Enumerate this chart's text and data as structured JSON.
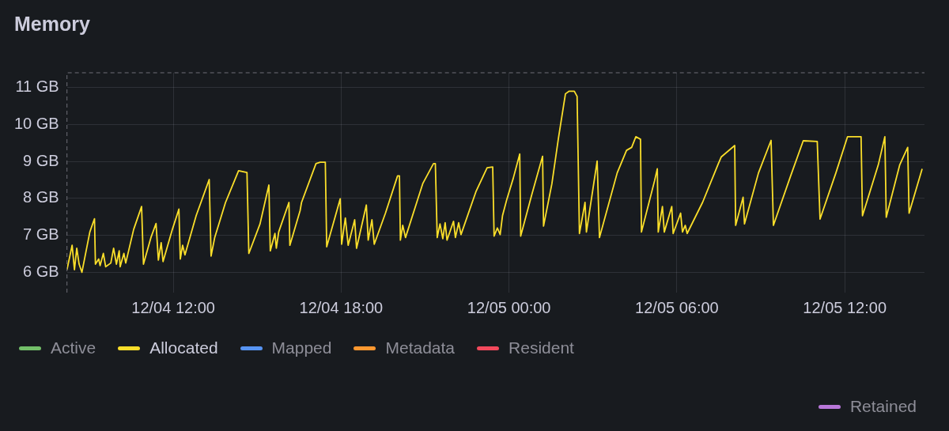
{
  "chart_data": {
    "type": "line",
    "title": "Memory",
    "xlim": [
      "--12-04T08:12",
      "--12-05T14:51"
    ],
    "xticks": [
      {
        "value": "--12-04T12:00",
        "label": "12/04 12:00"
      },
      {
        "value": "--12-04T18:00",
        "label": "12/04 18:00"
      },
      {
        "value": "--12-05T00:00",
        "label": "12/05 00:00"
      },
      {
        "value": "--12-05T06:00",
        "label": "12/05 06:00"
      },
      {
        "value": "--12-05T12:00",
        "label": "12/05 12:00"
      }
    ],
    "ylim": [
      5.45,
      11.4
    ],
    "yticks": [
      {
        "value": 6,
        "label": "6 GB"
      },
      {
        "value": 7,
        "label": "7 GB"
      },
      {
        "value": 8,
        "label": "8 GB"
      },
      {
        "value": 9,
        "label": "9 GB"
      },
      {
        "value": 10,
        "label": "10 GB"
      },
      {
        "value": 11,
        "label": "11 GB"
      }
    ],
    "grid": true,
    "legend": "bottom",
    "marker": "none",
    "line_style": "solid",
    "series": [
      {
        "name": "Active",
        "color": "#73bf69"
      },
      {
        "name": "Allocated",
        "color": "#fade2a",
        "x": [
          "--12-04T08:12",
          "--12-04T08:23",
          "--12-04T08:28",
          "--12-04T08:33",
          "--12-04T08:38",
          "--12-04T08:44",
          "--12-04T09:01",
          "--12-04T09:11",
          "--12-04T09:13",
          "--12-04T09:20",
          "--12-04T09:23",
          "--12-04T09:30",
          "--12-04T09:35",
          "--12-04T09:46",
          "--12-04T09:52",
          "--12-04T09:58",
          "--12-04T10:04",
          "--12-04T10:06",
          "--12-04T10:14",
          "--12-04T10:18",
          "--12-04T10:35",
          "--12-04T10:52",
          "--12-04T10:56",
          "--12-04T11:12",
          "--12-04T11:23",
          "--12-04T11:28",
          "--12-04T11:34",
          "--12-04T11:38",
          "--12-04T11:58",
          "--12-04T12:12",
          "--12-04T12:15",
          "--12-04T12:20",
          "--12-04T12:25",
          "--12-04T12:49",
          "--12-04T13:17",
          "--12-04T13:21",
          "--12-04T13:29",
          "--12-04T13:52",
          "--12-04T14:20",
          "--12-04T14:38",
          "--12-04T14:42",
          "--12-04T15:06",
          "--12-04T15:25",
          "--12-04T15:28",
          "--12-04T15:38",
          "--12-04T15:41",
          "--12-04T15:46",
          "--12-04T16:08",
          "--12-04T16:10",
          "--12-04T16:32",
          "--12-04T16:35",
          "--12-04T17:06",
          "--12-04T17:15",
          "--12-04T17:26",
          "--12-04T17:29",
          "--12-04T17:46",
          "--12-04T17:58",
          "--12-04T18:01",
          "--12-04T18:09",
          "--12-04T18:15",
          "--12-04T18:29",
          "--12-04T18:33",
          "--12-04T18:54",
          "--12-04T18:58",
          "--12-04T19:06",
          "--12-04T19:11",
          "--12-04T19:35",
          "--12-04T20:01",
          "--12-04T20:05",
          "--12-04T20:07",
          "--12-04T20:12",
          "--12-04T20:18",
          "--12-04T20:55",
          "--12-04T21:18",
          "--12-04T21:22",
          "--12-04T21:26",
          "--12-04T21:32",
          "--12-04T21:38",
          "--12-04T21:43",
          "--12-04T21:47",
          "--12-04T22:01",
          "--12-04T22:05",
          "--12-04T22:12",
          "--12-04T22:17",
          "--12-04T22:49",
          "--12-04T23:13",
          "--12-04T23:25",
          "--12-04T23:28",
          "--12-04T23:35",
          "--12-04T23:41",
          "--12-04T23:46",
          "--12-04T23:55",
          "--12-05T00:09",
          "--12-05T00:23",
          "--12-05T00:25",
          "--12-05T00:49",
          "--12-05T01:12",
          "--12-05T01:14",
          "--12-05T01:32",
          "--12-05T01:46",
          "--12-05T02:01",
          "--12-05T02:09",
          "--12-05T02:20",
          "--12-05T02:26",
          "--12-05T02:31",
          "--12-05T02:43",
          "--12-05T02:46",
          "--12-05T03:09",
          "--12-05T03:14",
          "--12-05T03:52",
          "--12-05T04:12",
          "--12-05T04:23",
          "--12-05T04:32",
          "--12-05T04:42",
          "--12-05T04:44",
          "--12-05T05:12",
          "--12-05T05:18",
          "--12-05T05:20",
          "--12-05T05:29",
          "--12-05T05:33",
          "--12-05T05:49",
          "--12-05T05:52",
          "--12-05T06:08",
          "--12-05T06:12",
          "--12-05T06:18",
          "--12-05T06:22",
          "--12-05T06:55",
          "--12-05T07:29",
          "--12-05T07:35",
          "--12-05T08:04",
          "--12-05T08:06",
          "--12-05T08:22",
          "--12-05T08:25",
          "--12-05T08:55",
          "--12-05T09:22",
          "--12-05T09:27",
          "--12-05T10:04",
          "--12-05T10:31",
          "--12-05T11:01",
          "--12-05T11:07",
          "--12-05T11:41",
          "--12-05T12:06",
          "--12-05T12:35",
          "--12-05T12:38",
          "--12-05T13:12",
          "--12-05T13:26",
          "--12-05T13:29",
          "--12-05T13:58",
          "--12-05T14:15",
          "--12-05T14:18",
          "--12-05T14:46"
        ],
        "values": [
          6.07,
          6.73,
          6.07,
          6.65,
          6.22,
          6.0,
          7.09,
          7.45,
          6.22,
          6.36,
          6.18,
          6.51,
          6.15,
          6.25,
          6.65,
          6.22,
          6.58,
          6.15,
          6.51,
          6.25,
          7.16,
          7.78,
          6.22,
          6.94,
          7.32,
          6.33,
          6.8,
          6.29,
          7.16,
          7.71,
          6.36,
          6.73,
          6.47,
          7.53,
          8.51,
          6.44,
          6.95,
          7.89,
          8.75,
          8.7,
          6.51,
          7.31,
          8.36,
          6.58,
          7.05,
          6.65,
          7.09,
          7.89,
          6.73,
          7.67,
          7.89,
          8.94,
          8.98,
          8.98,
          6.69,
          7.45,
          7.99,
          6.76,
          7.47,
          6.73,
          7.42,
          6.65,
          7.82,
          6.87,
          7.42,
          6.76,
          7.6,
          8.61,
          8.61,
          6.87,
          7.27,
          6.94,
          8.4,
          8.94,
          8.94,
          6.94,
          7.31,
          6.91,
          7.34,
          6.87,
          7.38,
          6.94,
          7.34,
          7.02,
          8.18,
          8.83,
          8.85,
          6.98,
          7.2,
          7.02,
          7.53,
          7.96,
          8.54,
          9.2,
          6.98,
          8.11,
          9.14,
          7.25,
          8.4,
          9.63,
          10.83,
          10.9,
          10.9,
          10.76,
          7.05,
          7.89,
          7.09,
          9.01,
          6.94,
          8.69,
          9.3,
          9.38,
          9.67,
          9.6,
          7.09,
          8.47,
          8.8,
          7.09,
          7.78,
          7.09,
          7.78,
          7.05,
          7.6,
          7.09,
          7.27,
          7.05,
          7.89,
          8.94,
          9.12,
          9.43,
          7.27,
          8.03,
          7.31,
          8.69,
          9.57,
          7.27,
          8.61,
          9.56,
          9.54,
          7.44,
          8.69,
          9.67,
          9.67,
          7.53,
          8.91,
          9.67,
          7.49,
          8.91,
          9.38,
          7.6,
          8.8
        ]
      },
      {
        "name": "Mapped",
        "color": "#5794f2"
      },
      {
        "name": "Metadata",
        "color": "#ff9830"
      },
      {
        "name": "Resident",
        "color": "#f2495c"
      },
      {
        "name": "Retained",
        "color": "#b877d9"
      }
    ]
  }
}
